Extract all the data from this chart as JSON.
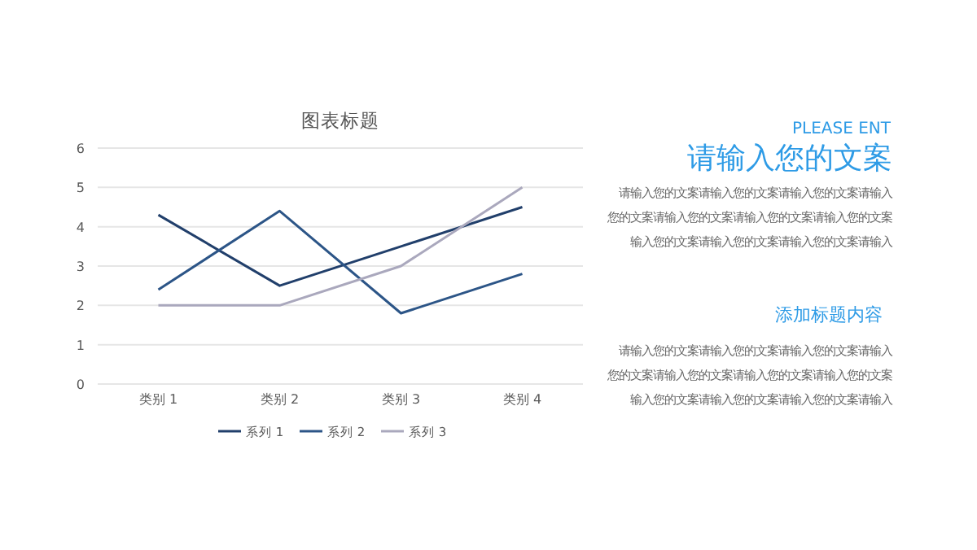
{
  "chart_data": [
    {
      "type": "line",
      "title": "图表标题",
      "categories": [
        "类别 1",
        "类别 2",
        "类别 3",
        "类别 4"
      ],
      "series": [
        {
          "name": "系列 1",
          "color": "#213f6b",
          "values": [
            4.3,
            2.5,
            3.5,
            4.5
          ]
        },
        {
          "name": "系列 2",
          "color": "#2c5587",
          "values": [
            2.4,
            4.4,
            1.8,
            2.8
          ]
        },
        {
          "name": "系列 3",
          "color": "#aaa8bd",
          "values": [
            2,
            2,
            3,
            5
          ]
        }
      ],
      "ylim": [
        0,
        6
      ],
      "yticks": [
        0,
        1,
        2,
        3,
        4,
        5,
        6
      ],
      "grid": "y",
      "legend": "bottom",
      "marker": "none",
      "line_style": "solid"
    },
    {
      "type": "other",
      "subtitle": "PLEASE ENT",
      "title": "请输入您的文案",
      "annotations": [
        "请输入您的文案请输入您的文案请输入您的文案请输入",
        "您的文案请输入您的文案请输入您的文案请输入您的文案输入您的文案请输入您的文案请输入您的文案请输入",
        "添加标题内容",
        "请输入您的文案请输入您的文案请输入您的文案请输入",
        "您的文案请输入您的文案请输入您的文案请输入您的文案输入您的文案请输入您的文案请输入您的文案请输入"
      ]
    }
  ]
}
